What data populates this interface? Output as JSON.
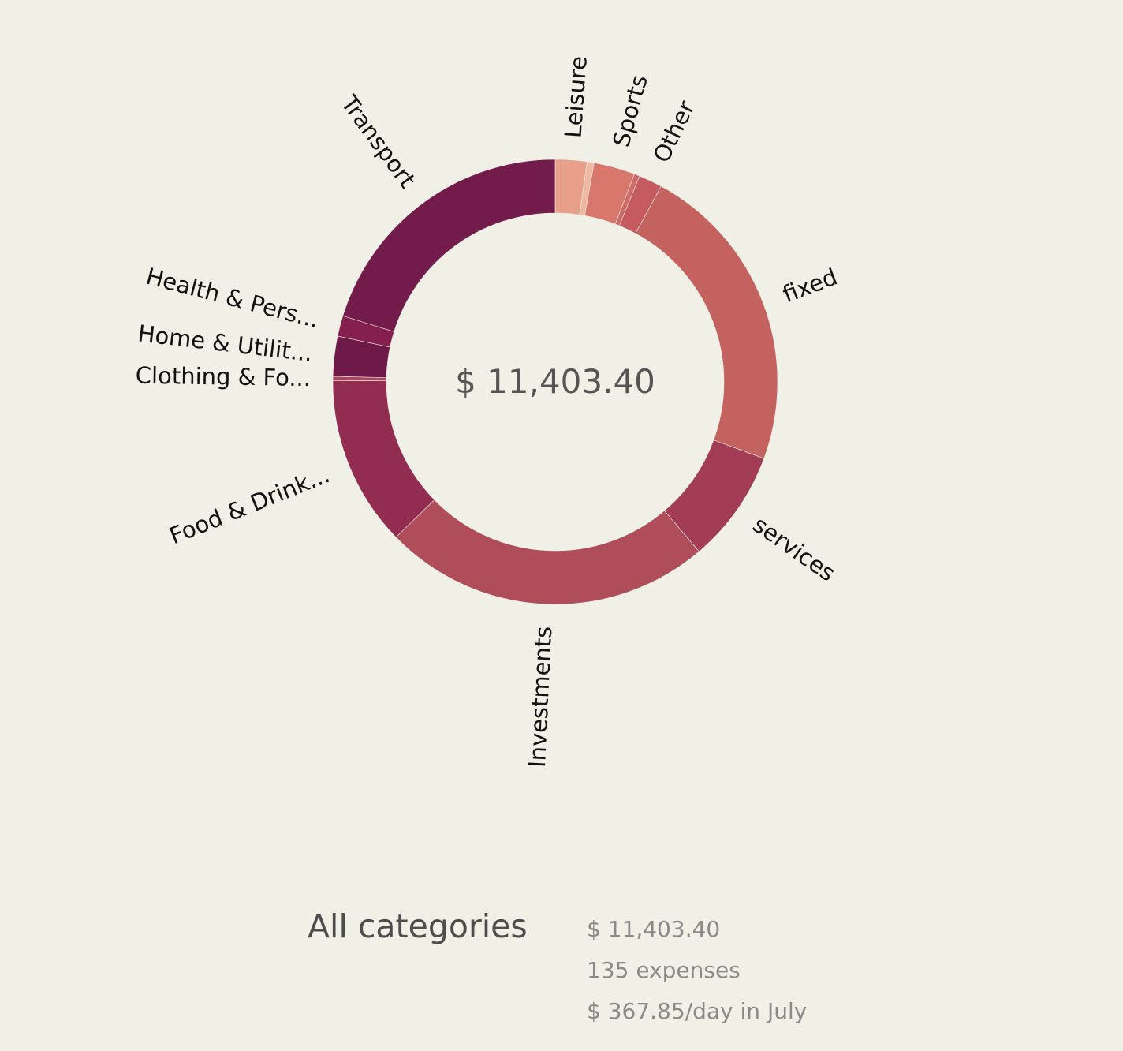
{
  "chart_data": {
    "type": "pie",
    "style": "donut",
    "center_label": "$ 11,403.40",
    "slices": [
      {
        "label": "Leisure",
        "value": 2.3,
        "color": "#e8a08a"
      },
      {
        "label": "",
        "value": 0.5,
        "color": "#f0b8a0"
      },
      {
        "label": "Sports",
        "value": 3.0,
        "color": "#d8786c"
      },
      {
        "label": "",
        "value": 0.4,
        "color": "#cf6b66"
      },
      {
        "label": "Other",
        "value": 1.7,
        "color": "#c55a60"
      },
      {
        "label": "fixed",
        "value": 22.7,
        "color": "#c3625f"
      },
      {
        "label": "services",
        "value": 8.2,
        "color": "#a33d55"
      },
      {
        "label": "Investments",
        "value": 23.9,
        "color": "#b04d5a"
      },
      {
        "label": "Food & Drink...",
        "value": 12.4,
        "color": "#922c50"
      },
      {
        "label": "Clothing & Fo...",
        "value": 0.3,
        "color": "#a44a5e"
      },
      {
        "label": "Home & Utilit...",
        "value": 2.9,
        "color": "#6d1a48"
      },
      {
        "label": "Health & Pers...",
        "value": 1.5,
        "color": "#851f4d"
      },
      {
        "label": "Transport",
        "value": 20.2,
        "color": "#731b4b"
      }
    ]
  },
  "summary": {
    "title": "All categories",
    "total": "$ 11,403.40",
    "expenses": "135 expenses",
    "per_day": "$ 367.85/day in July"
  }
}
